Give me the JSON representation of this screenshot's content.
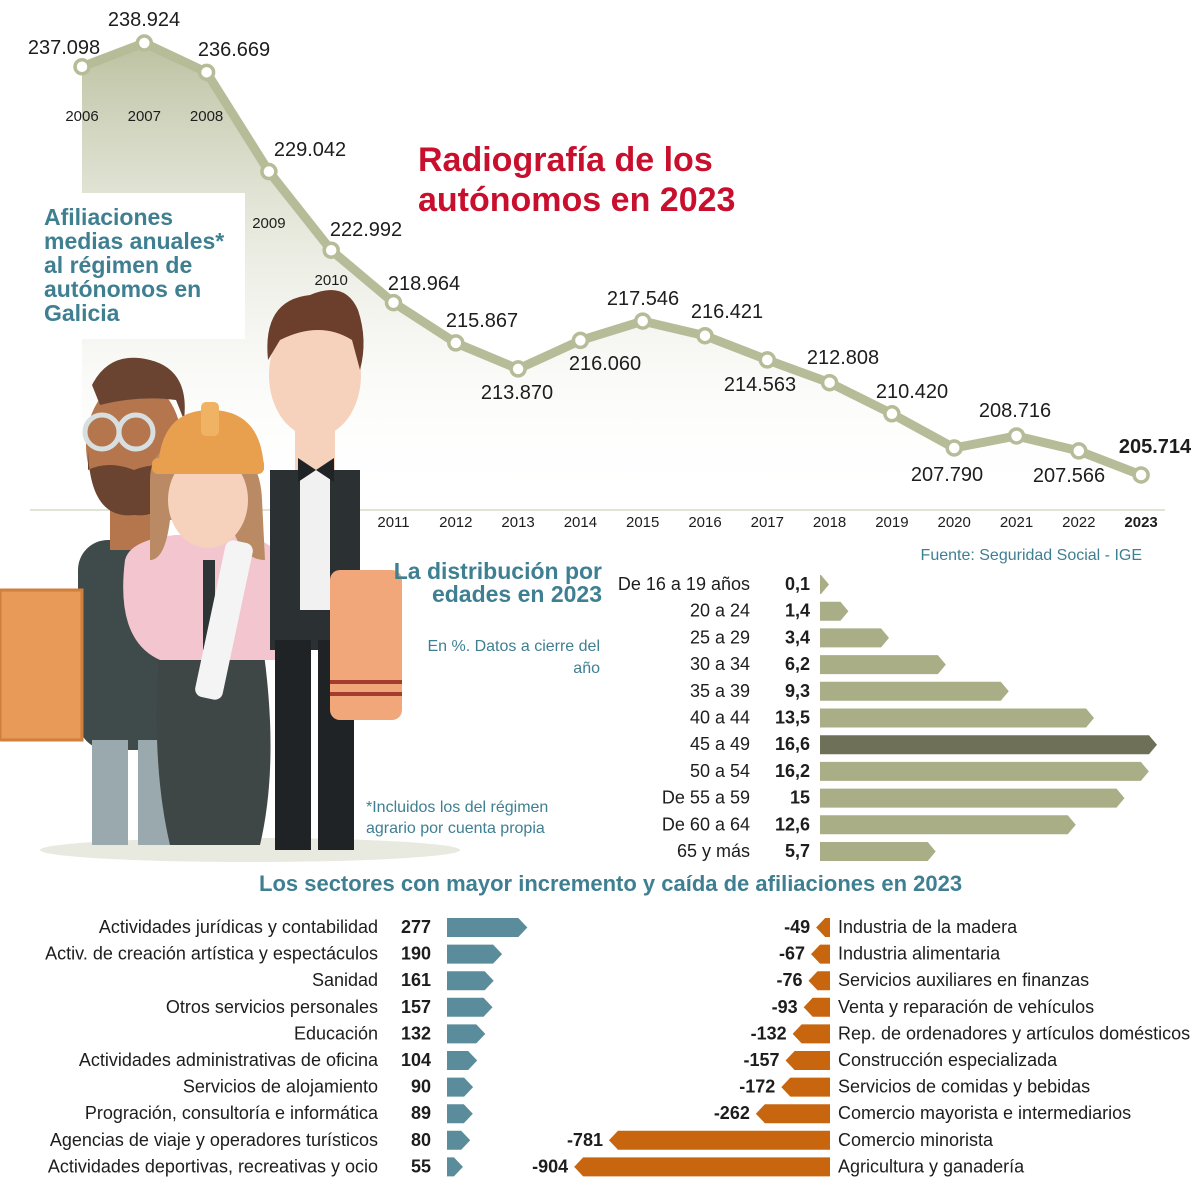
{
  "title": "Radiografía de los autónomos en 2023",
  "line_chart": {
    "subtitle": "Afiliaciones medias anuales* al régimen de autónomos en Galicia",
    "source": "Fuente: Seguridad Social - IGE",
    "footnote": "*Incluidos los del régimen agrario por cuenta propia"
  },
  "age_chart": {
    "title": "La distribución por edades en 2023",
    "note": "En %. Datos a cierre del año"
  },
  "sector_chart": {
    "title": "Los sectores con mayor incremento y caída de afiliaciones en 2023"
  },
  "colors": {
    "line": "#b7bc98",
    "area_top": "#c6cbae",
    "marker_fill": "#ffffff",
    "title_red": "#c8102e",
    "teal_text": "#3f7f92",
    "age_bar": "#a9ae86",
    "age_bar_highlight": "#6e7158",
    "positive_bar": "#5b8c9b",
    "negative_bar": "#c8660f"
  },
  "chart_data": [
    {
      "type": "line",
      "title": "Afiliaciones medias anuales* al régimen de autónomos en Galicia",
      "x": [
        "2006",
        "2007",
        "2008",
        "2009",
        "2010",
        "2011",
        "2012",
        "2013",
        "2014",
        "2015",
        "2016",
        "2017",
        "2018",
        "2019",
        "2020",
        "2021",
        "2022",
        "2023"
      ],
      "values": [
        237098,
        238924,
        236669,
        229042,
        222992,
        218964,
        215867,
        213870,
        216060,
        217546,
        216421,
        214563,
        212808,
        210420,
        207790,
        208716,
        207566,
        205714
      ],
      "labels": [
        "237.098",
        "238.924",
        "236.669",
        "229.042",
        "222.992",
        "218.964",
        "215.867",
        "213.870",
        "216.060",
        "217.546",
        "216.421",
        "214.563",
        "212.808",
        "210.420",
        "207.790",
        "208.716",
        "207.566",
        "205.714"
      ],
      "ylim": [
        204000,
        240000
      ]
    },
    {
      "type": "bar",
      "title": "La distribución por edades en 2023",
      "categories": [
        "De 16 a 19 años",
        "20 a 24",
        "25 a 29",
        "30 a 34",
        "35 a 39",
        "40 a 44",
        "45 a 49",
        "50 a 54",
        "De 55 a 59",
        "De 60 a 64",
        "65 y más"
      ],
      "values": [
        0.1,
        1.4,
        3.4,
        6.2,
        9.3,
        13.5,
        16.6,
        16.2,
        15,
        12.6,
        5.7
      ],
      "labels": [
        "0,1",
        "1,4",
        "3,4",
        "6,2",
        "9,3",
        "13,5",
        "16,6",
        "16,2",
        "15",
        "12,6",
        "5,7"
      ],
      "highlight": "45 a 49"
    },
    {
      "type": "bar",
      "title": "Los sectores con mayor incremento y caída de afiliaciones en 2023",
      "series": [
        {
          "categories": [
            "Actividades jurídicas y contabilidad",
            "Activ. de creación artística y espectáculos",
            "Sanidad",
            "Otros servicios personales",
            "Educación",
            "Actividades administrativas de oficina",
            "Servicios de alojamiento",
            "Progración, consultoría e informática",
            "Agencias de viaje y operadores turísticos",
            "Actividades deportivas, recreativas y ocio"
          ],
          "values": [
            277,
            190,
            161,
            157,
            132,
            104,
            90,
            89,
            80,
            55
          ]
        },
        {
          "categories": [
            "Industria de la madera",
            "Industria alimentaria",
            "Servicios auxiliares en finanzas",
            "Venta y reparación de vehículos",
            "Rep. de ordenadores y artículos domésticos",
            "Construcción especializada",
            "Servicios de comidas y bebidas",
            "Comercio mayorista e intermediarios",
            "Comercio minorista",
            "Agricultura y ganadería"
          ],
          "values": [
            -49,
            -67,
            -76,
            -93,
            -132,
            -157,
            -172,
            -262,
            -781,
            -904
          ]
        }
      ]
    }
  ]
}
